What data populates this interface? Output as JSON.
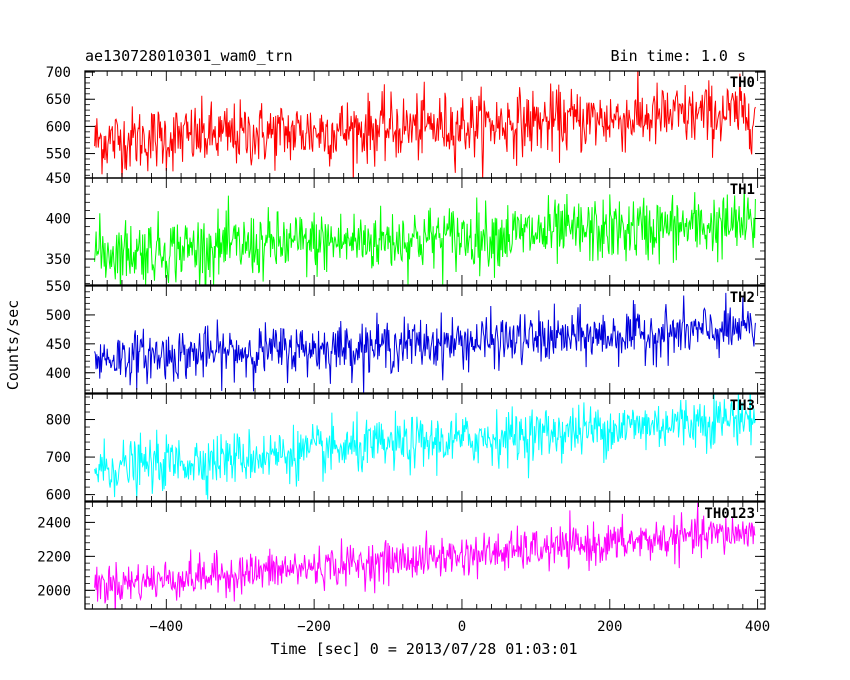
{
  "header": {
    "title": "ae130728010301_wam0_trn",
    "bin_time": "Bin time: 1.0 s"
  },
  "chart_data": {
    "type": "line",
    "xlabel": "Time [sec] 0 = 2013/07/28 01:03:01",
    "ylabel": "Counts/sec",
    "xlim": [
      -510,
      410
    ],
    "x_ticks": [
      -400,
      -200,
      0,
      200,
      400
    ],
    "x_tick_labels": [
      "−400",
      "−200",
      "0",
      "200",
      "400"
    ],
    "x_start": -497,
    "x_end": 397,
    "bin": 1.0,
    "series": [
      {
        "name": "TH0",
        "color": "#ff0000",
        "ylim": [
          505,
          702
        ],
        "y_ticks": [
          550,
          600,
          650,
          700
        ],
        "start": 573,
        "end": 625,
        "noise": 30
      },
      {
        "name": "TH1",
        "color": "#00ff00",
        "ylim": [
          318,
          450
        ],
        "y_ticks": [
          350,
          400,
          450
        ],
        "start": 358,
        "end": 393,
        "noise": 20
      },
      {
        "name": "TH2",
        "color": "#0000dd",
        "ylim": [
          365,
          550
        ],
        "y_ticks": [
          400,
          450,
          500,
          550
        ],
        "start": 425,
        "end": 475,
        "noise": 22
      },
      {
        "name": "TH3",
        "color": "#00ffff",
        "ylim": [
          583,
          868
        ],
        "y_ticks": [
          600,
          700,
          800
        ],
        "start": 668,
        "end": 808,
        "noise": 35
      },
      {
        "name": "TH0123",
        "color": "#ff00ff",
        "ylim": [
          1890,
          2520
        ],
        "y_ticks": [
          2000,
          2200,
          2400
        ],
        "start": 2030,
        "end": 2345,
        "noise": 60
      }
    ]
  }
}
